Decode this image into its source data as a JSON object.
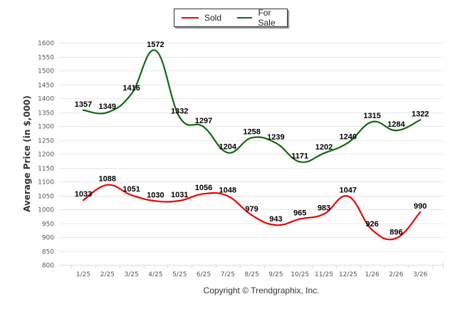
{
  "chart_data": {
    "type": "line",
    "title": "",
    "xlabel": "",
    "ylabel": "Average Price (in $,000)",
    "ylim": [
      800,
      1600
    ],
    "ytick_step": 50,
    "yticks": [
      "1600",
      "1550",
      "1500",
      "1450",
      "1400",
      "1350",
      "1300",
      "1250",
      "1200",
      "1150",
      "1100",
      "1050",
      "1000",
      "950",
      "900",
      "850",
      "800"
    ],
    "grid": true,
    "legend_position": "top-center",
    "categories": [
      "1/25",
      "2/25",
      "3/25",
      "4/25",
      "5/25",
      "6/25",
      "7/25",
      "8/25",
      "9/25",
      "10/25",
      "11/25",
      "12/25",
      "1/26",
      "2/26",
      "3/26"
    ],
    "series": [
      {
        "name": "Sold",
        "color": "#ee0000",
        "values": [
          1033,
          1088,
          1051,
          1030,
          1031,
          1056,
          1048,
          979,
          943,
          965,
          983,
          1047,
          926,
          896,
          990
        ]
      },
      {
        "name": "For Sale",
        "color": "#0f6b0f",
        "values": [
          1357,
          1349,
          1416,
          1572,
          1332,
          1297,
          1204,
          1258,
          1239,
          1171,
          1202,
          1240,
          1315,
          1284,
          1322
        ]
      }
    ]
  },
  "legend": {
    "items": [
      {
        "label": "Sold",
        "color": "#ee0000"
      },
      {
        "label": "For Sale",
        "color": "#0f6b0f"
      }
    ]
  },
  "footer": {
    "copyright": "Copyright © Trendgraphix, Inc."
  }
}
